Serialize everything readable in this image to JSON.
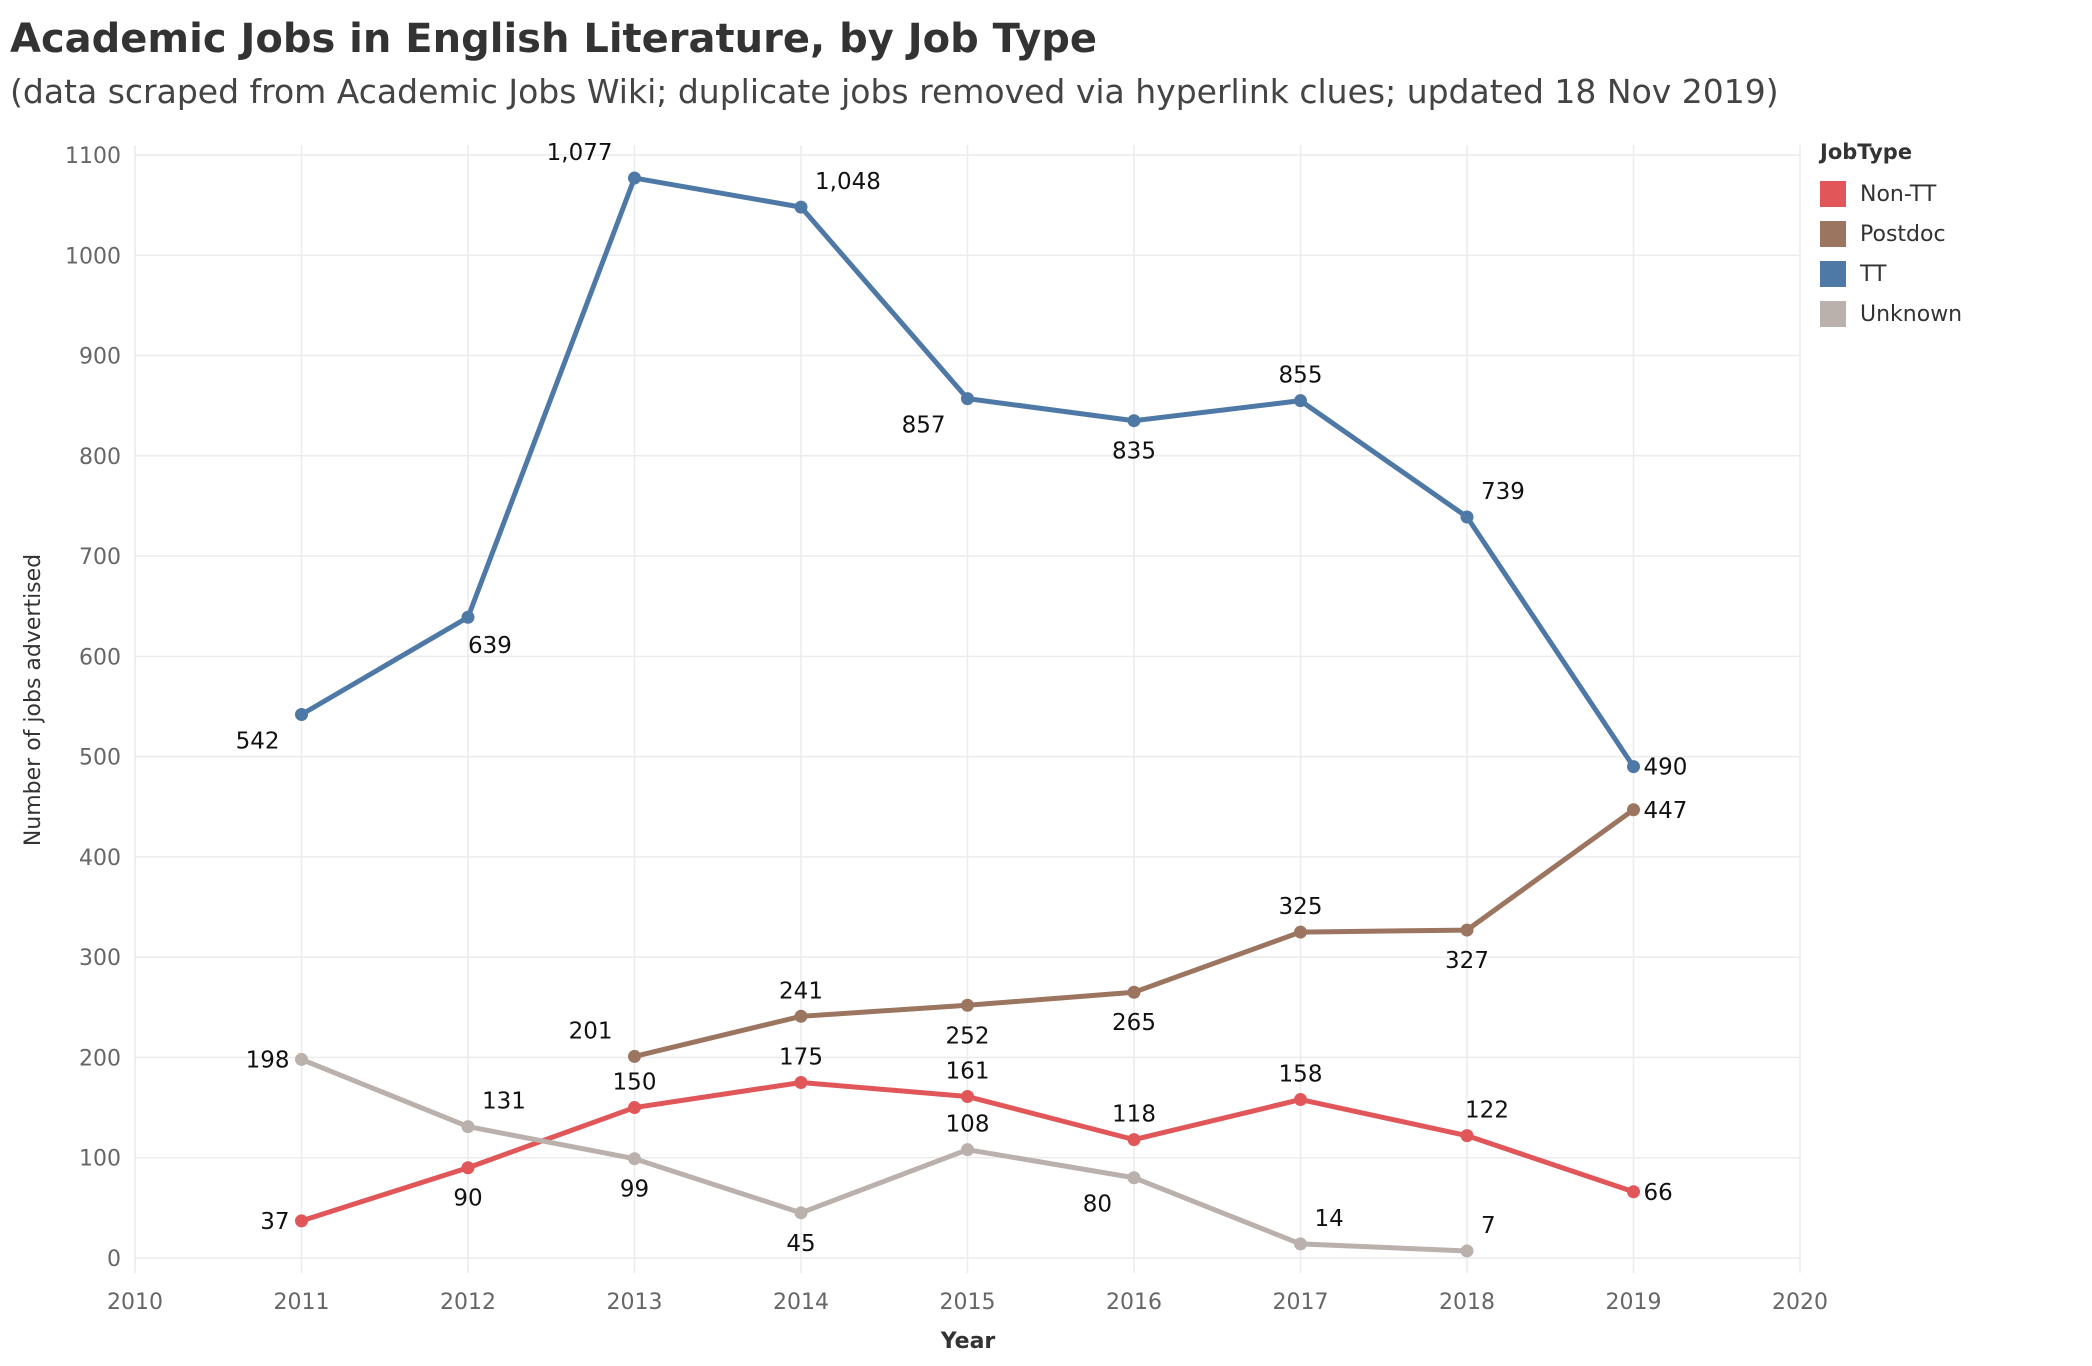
{
  "chart_data": {
    "type": "line",
    "title": "Academic Jobs in English Literature, by Job Type",
    "subtitle": "(data scraped from Academic Jobs Wiki; duplicate jobs removed via hyperlink clues; updated 18 Nov 2019)",
    "xlabel": "Year",
    "ylabel": "Number of jobs advertised",
    "xlim": [
      2010,
      2020
    ],
    "ylim": [
      -15,
      1100
    ],
    "x_ticks": [
      2010,
      2011,
      2012,
      2013,
      2014,
      2015,
      2016,
      2017,
      2018,
      2019,
      2020
    ],
    "y_ticks": [
      0,
      100,
      200,
      300,
      400,
      500,
      600,
      700,
      800,
      900,
      1000,
      1100
    ],
    "grid": true,
    "legend": {
      "title": "JobType",
      "position": "right"
    },
    "series": [
      {
        "name": "Non-TT",
        "color": "#e15759",
        "x": [
          2011,
          2012,
          2013,
          2014,
          2015,
          2016,
          2017,
          2018,
          2019
        ],
        "values": [
          37,
          90,
          150,
          175,
          161,
          118,
          158,
          122,
          66
        ],
        "labels": [
          "37",
          "90",
          "150",
          "175",
          "161",
          "118",
          "158",
          "122",
          "66"
        ]
      },
      {
        "name": "Postdoc",
        "color": "#9c7560",
        "x": [
          2013,
          2014,
          2015,
          2016,
          2017,
          2018,
          2019
        ],
        "values": [
          201,
          241,
          252,
          265,
          325,
          327,
          447
        ],
        "labels": [
          "201",
          "241",
          "252",
          "265",
          "325",
          "327",
          "447"
        ]
      },
      {
        "name": "TT",
        "color": "#4e79a7",
        "x": [
          2011,
          2012,
          2013,
          2014,
          2015,
          2016,
          2017,
          2018,
          2019
        ],
        "values": [
          542,
          639,
          1077,
          1048,
          857,
          835,
          855,
          739,
          490
        ],
        "labels": [
          "542",
          "639",
          "1,077",
          "1,048",
          "857",
          "835",
          "855",
          "739",
          "490"
        ]
      },
      {
        "name": "Unknown",
        "color": "#bab0ac",
        "x": [
          2011,
          2012,
          2013,
          2014,
          2015,
          2016,
          2017,
          2018
        ],
        "values": [
          198,
          131,
          99,
          45,
          108,
          80,
          14,
          7
        ],
        "labels": [
          "198",
          "131",
          "99",
          "45",
          "108",
          "80",
          "14",
          "7"
        ]
      }
    ]
  }
}
